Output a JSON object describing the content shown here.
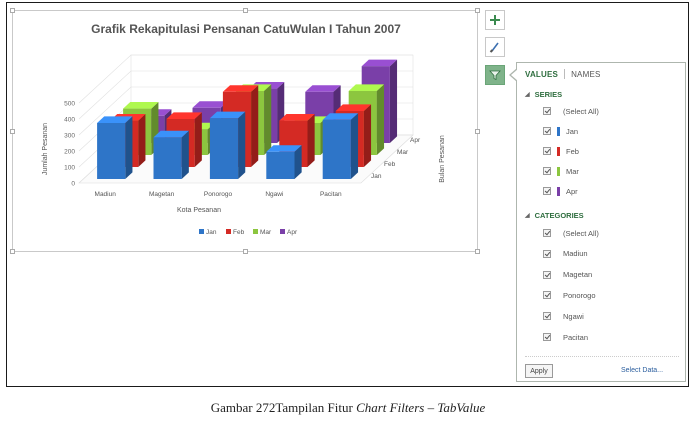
{
  "chart": {
    "title": "Grafik Rekapitulasi Pensanan CatuWulan I Tahun 2007",
    "xlabel": "Kota Pesanan",
    "ylabel": "Jumlah Pesanan",
    "zlabel": "Bulan Pesanan"
  },
  "toolbar": {
    "add_icon": "plus-icon",
    "style_icon": "brush-icon",
    "filter_icon": "funnel-icon"
  },
  "panel": {
    "tab_values": "VALUES",
    "tab_names": "NAMES",
    "series_header": "SERIES",
    "categories_header": "CATEGORIES",
    "series_items": [
      {
        "label": "(Select All)",
        "color": ""
      },
      {
        "label": "Jan",
        "color": "#2e75c8"
      },
      {
        "label": "Feb",
        "color": "#d42a24"
      },
      {
        "label": "Mar",
        "color": "#8cc63f"
      },
      {
        "label": "Apr",
        "color": "#7a3fa8"
      }
    ],
    "category_items": [
      {
        "label": "(Select All)"
      },
      {
        "label": "Madiun"
      },
      {
        "label": "Magetan"
      },
      {
        "label": "Ponorogo"
      },
      {
        "label": "Ngawi"
      },
      {
        "label": "Pacitan"
      }
    ],
    "apply_label": "Apply",
    "select_data_label": "Select Data..."
  },
  "caption": {
    "prefix": "Gambar 272Tampilan Fitur ",
    "italic": "Chart Filters – TabValue"
  },
  "chart_data": {
    "type": "bar",
    "title": "Grafik Rekapitulasi Pensanan CatuWulan I Tahun 2007",
    "xlabel": "Kota Pesanan",
    "ylabel": "Jumlah Pesanan",
    "zlabel": "Bulan Pesanan",
    "categories": [
      "Madiun",
      "Magetan",
      "Ponorogo",
      "Ngawi",
      "Pacitan"
    ],
    "yticks": [
      "0",
      "100",
      "200",
      "300",
      "400",
      "500"
    ],
    "ylim": [
      0,
      500
    ],
    "series": [
      {
        "name": "Jan",
        "color": "#2e75c8",
        "values": [
          350,
          260,
          380,
          170,
          370
        ]
      },
      {
        "name": "Feb",
        "color": "#d42a24",
        "values": [
          290,
          300,
          470,
          290,
          350
        ]
      },
      {
        "name": "Mar",
        "color": "#8cc63f",
        "values": [
          290,
          160,
          400,
          200,
          400
        ]
      },
      {
        "name": "Apr",
        "color": "#7a3fa8",
        "values": [
          170,
          220,
          340,
          320,
          480
        ]
      }
    ],
    "legend": "bottom",
    "grid": true
  },
  "colors": {
    "accent": "#2f6e3f",
    "filter_button": "#7fb38a",
    "link": "#2b5e9e"
  }
}
